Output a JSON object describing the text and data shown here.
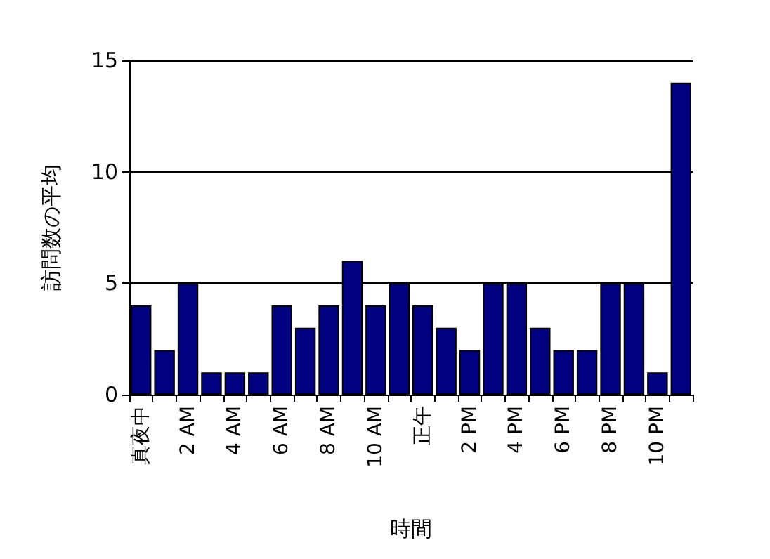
{
  "chart_data": {
    "type": "bar",
    "xlabel": "時間",
    "ylabel": "訪問数の平均",
    "categories": [
      "真夜中",
      null,
      "2 AM",
      null,
      "4 AM",
      null,
      "6 AM",
      null,
      "8 AM",
      null,
      "10 AM",
      null,
      "正午",
      null,
      "2 PM",
      null,
      "4 PM",
      null,
      "6 PM",
      null,
      "8 PM",
      null,
      "10 PM",
      null
    ],
    "values": [
      4,
      2,
      5,
      1,
      1,
      1,
      4,
      3,
      4,
      6,
      4,
      5,
      4,
      3,
      2,
      5,
      5,
      3,
      2,
      2,
      5,
      5,
      1,
      14
    ],
    "color": "#000080",
    "ylim": [
      0,
      15
    ],
    "yticks": [
      0,
      5,
      10,
      15
    ],
    "grid": "y"
  }
}
